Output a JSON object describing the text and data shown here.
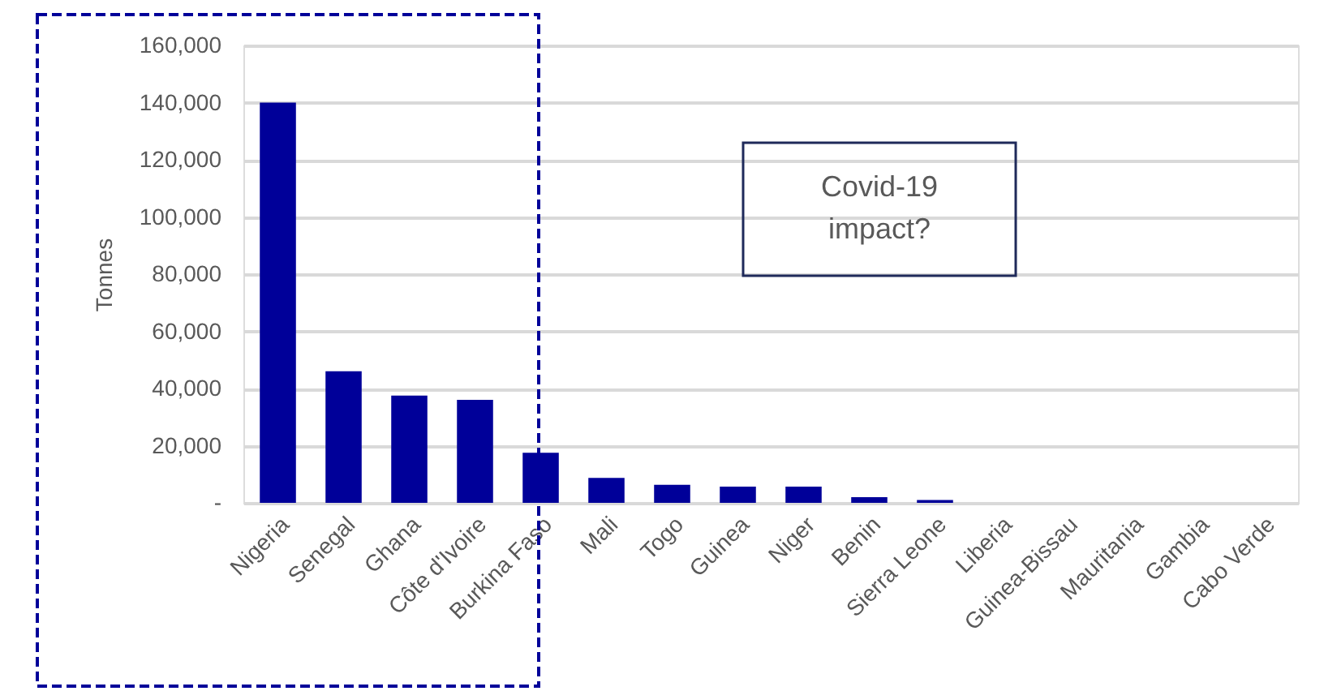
{
  "chart_data": {
    "type": "bar",
    "ylabel": "Tonnes",
    "categories": [
      "Nigeria",
      "Senegal",
      "Ghana",
      "Côte d'Ivoire",
      "Burkina Faso",
      "Mali",
      "Togo",
      "Guinea",
      "Niger",
      "Benin",
      "Sierra Leone",
      "Liberia",
      "Guinea-Bissau",
      "Mauritania",
      "Gambia",
      "Cabo Verde"
    ],
    "values": [
      140000,
      46000,
      37500,
      36000,
      17500,
      8700,
      6300,
      5700,
      5700,
      2000,
      1000,
      0,
      0,
      0,
      0,
      0
    ],
    "color": "#000099",
    "ylim": [
      0,
      160000
    ],
    "yticks": [
      {
        "value": 0,
        "label": "-"
      },
      {
        "value": 20000,
        "label": "20,000"
      },
      {
        "value": 40000,
        "label": "40,000"
      },
      {
        "value": 60000,
        "label": "60,000"
      },
      {
        "value": 80000,
        "label": "80,000"
      },
      {
        "value": 100000,
        "label": "100,000"
      },
      {
        "value": 120000,
        "label": "120,000"
      },
      {
        "value": 140000,
        "label": "140,000"
      },
      {
        "value": 160000,
        "label": "160,000"
      }
    ],
    "grid": "y",
    "annotations": [
      "Covid-19 impact?"
    ]
  }
}
